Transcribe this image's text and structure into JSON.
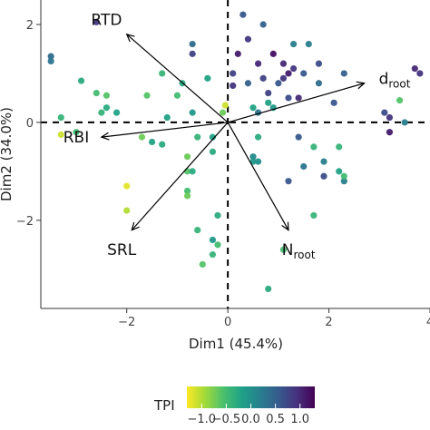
{
  "chart_data": {
    "type": "scatter",
    "title": "",
    "xlabel": "Dim1 (45.4%)",
    "ylabel": "Dim2 (34.0%)",
    "xlim": [
      -3.7,
      4.0
    ],
    "ylim": [
      -3.8,
      2.5
    ],
    "xticks": [
      {
        "value": -2,
        "label": "−2"
      },
      {
        "value": 0,
        "label": "0"
      },
      {
        "value": 2,
        "label": "2"
      },
      {
        "value": 4,
        "label": "4"
      }
    ],
    "yticks": [
      {
        "value": 2,
        "label": "2"
      },
      {
        "value": 0,
        "label": "0"
      },
      {
        "value": -2,
        "label": "−2"
      }
    ],
    "reference_lines": {
      "x": 0,
      "y": 0,
      "style": "dashed"
    },
    "grid": false,
    "legend": {
      "title": "TPI",
      "placement": "bottom",
      "min": -1.3,
      "max": 1.3,
      "ticks": [
        {
          "value": -1.0,
          "label": "−1.0"
        },
        {
          "value": -0.5,
          "label": "−0.5"
        },
        {
          "value": 0.0,
          "label": "0.0"
        },
        {
          "value": 0.5,
          "label": "0.5"
        },
        {
          "value": 1.0,
          "label": "1.0"
        }
      ],
      "colors": [
        "#fde725",
        "#a0da39",
        "#4ac16d",
        "#1fa187",
        "#277f8e",
        "#365c8d",
        "#46327e",
        "#440154"
      ]
    },
    "vectors": [
      {
        "name": "RTD",
        "sub": "",
        "x": -2.0,
        "y": 1.8,
        "label_x": -2.4,
        "label_y": 2.1
      },
      {
        "name": "RBI",
        "sub": "",
        "x": -2.5,
        "y": -0.3,
        "label_x": -3.0,
        "label_y": -0.3
      },
      {
        "name": "SRL",
        "sub": "",
        "x": -1.9,
        "y": -2.2,
        "label_x": -2.1,
        "label_y": -2.6
      },
      {
        "name": "N",
        "sub": "root",
        "x": 1.2,
        "y": -2.2,
        "label_x": 1.4,
        "label_y": -2.6
      },
      {
        "name": "d",
        "sub": "root",
        "x": 2.7,
        "y": 0.8,
        "label_x": 3.3,
        "label_y": 0.9
      }
    ],
    "points": [
      {
        "x": -3.5,
        "y": 1.35,
        "tpi": 0.4
      },
      {
        "x": -3.5,
        "y": 1.25,
        "tpi": 0.3
      },
      {
        "x": -3.3,
        "y": -0.25,
        "tpi": -1.1
      },
      {
        "x": -3.3,
        "y": 0.1,
        "tpi": -0.4
      },
      {
        "x": -3.0,
        "y": -0.2,
        "tpi": -0.5
      },
      {
        "x": -2.9,
        "y": 0.85,
        "tpi": -0.3
      },
      {
        "x": -2.6,
        "y": 2.05,
        "tpi": 0.9
      },
      {
        "x": -2.6,
        "y": 0.6,
        "tpi": -0.5
      },
      {
        "x": -2.5,
        "y": 0.2,
        "tpi": -0.4
      },
      {
        "x": -2.4,
        "y": 0.55,
        "tpi": -0.6
      },
      {
        "x": -2.4,
        "y": 0.3,
        "tpi": -0.3
      },
      {
        "x": -2.2,
        "y": 0.2,
        "tpi": -0.2
      },
      {
        "x": -2.0,
        "y": -1.3,
        "tpi": -1.2
      },
      {
        "x": -2.0,
        "y": -1.8,
        "tpi": -1.0
      },
      {
        "x": -1.7,
        "y": -0.3,
        "tpi": -0.7
      },
      {
        "x": -1.6,
        "y": 0.55,
        "tpi": -0.6
      },
      {
        "x": -1.5,
        "y": -0.4,
        "tpi": -0.2
      },
      {
        "x": -1.3,
        "y": -0.45,
        "tpi": -0.3
      },
      {
        "x": -1.3,
        "y": 1.0,
        "tpi": -0.4
      },
      {
        "x": -1.2,
        "y": 0.1,
        "tpi": -0.2
      },
      {
        "x": -1.0,
        "y": 0.55,
        "tpi": -0.5
      },
      {
        "x": -0.9,
        "y": 0.8,
        "tpi": -0.3
      },
      {
        "x": -0.8,
        "y": -0.7,
        "tpi": -0.7
      },
      {
        "x": -0.8,
        "y": -1.4,
        "tpi": -0.5
      },
      {
        "x": -0.7,
        "y": 1.4,
        "tpi": 0.8
      },
      {
        "x": -0.7,
        "y": 1.6,
        "tpi": 0.4
      },
      {
        "x": -0.8,
        "y": -1.0,
        "tpi": -0.6
      },
      {
        "x": -0.8,
        "y": -1.5,
        "tpi": -0.7
      },
      {
        "x": -0.7,
        "y": -1.0,
        "tpi": -0.3
      },
      {
        "x": -0.7,
        "y": 0.2,
        "tpi": -0.1
      },
      {
        "x": -0.6,
        "y": -0.3,
        "tpi": -0.4
      },
      {
        "x": -0.6,
        "y": -2.2,
        "tpi": -0.4
      },
      {
        "x": -0.5,
        "y": -2.9,
        "tpi": -0.6
      },
      {
        "x": -0.4,
        "y": 0.9,
        "tpi": -0.2
      },
      {
        "x": -0.3,
        "y": -0.3,
        "tpi": -0.2
      },
      {
        "x": -0.3,
        "y": -0.6,
        "tpi": -0.3
      },
      {
        "x": -0.3,
        "y": -2.7,
        "tpi": -0.4
      },
      {
        "x": -0.3,
        "y": -2.4,
        "tpi": -0.1
      },
      {
        "x": -0.2,
        "y": -1.9,
        "tpi": -0.3
      },
      {
        "x": -0.2,
        "y": -2.5,
        "tpi": -0.5
      },
      {
        "x": -0.1,
        "y": 0.2,
        "tpi": -0.7
      },
      {
        "x": -0.05,
        "y": 0.35,
        "tpi": -1.1
      },
      {
        "x": 0.1,
        "y": 0.75,
        "tpi": 0.9
      },
      {
        "x": 0.1,
        "y": 1.0,
        "tpi": 0.8
      },
      {
        "x": 0.2,
        "y": 1.4,
        "tpi": 1.1
      },
      {
        "x": 0.3,
        "y": 2.2,
        "tpi": 0.6
      },
      {
        "x": 0.4,
        "y": 1.7,
        "tpi": 0.9
      },
      {
        "x": 0.4,
        "y": 0.8,
        "tpi": 0.5
      },
      {
        "x": 0.5,
        "y": 0.3,
        "tpi": -0.2
      },
      {
        "x": 0.5,
        "y": -0.7,
        "tpi": 0.1
      },
      {
        "x": 0.5,
        "y": -0.8,
        "tpi": -0.1
      },
      {
        "x": 0.6,
        "y": 1.2,
        "tpi": 1.0
      },
      {
        "x": 0.6,
        "y": -0.3,
        "tpi": -0.3
      },
      {
        "x": 0.6,
        "y": 0.2,
        "tpi": 0.3
      },
      {
        "x": 0.6,
        "y": -0.8,
        "tpi": 0.0
      },
      {
        "x": 0.7,
        "y": 2.0,
        "tpi": 0.5
      },
      {
        "x": 0.7,
        "y": 0.9,
        "tpi": 0.8
      },
      {
        "x": 0.8,
        "y": 0.6,
        "tpi": 0.8
      },
      {
        "x": 0.8,
        "y": 0.4,
        "tpi": -0.2
      },
      {
        "x": 0.9,
        "y": 1.4,
        "tpi": 1.2
      },
      {
        "x": 0.9,
        "y": 0.3,
        "tpi": -0.1
      },
      {
        "x": 0.8,
        "y": -3.4,
        "tpi": -0.3
      },
      {
        "x": 1.0,
        "y": 0.8,
        "tpi": 0.6
      },
      {
        "x": 1.1,
        "y": 1.2,
        "tpi": 1.0
      },
      {
        "x": 1.1,
        "y": -2.6,
        "tpi": -0.5
      },
      {
        "x": 1.1,
        "y": 0.9,
        "tpi": 0.9
      },
      {
        "x": 1.2,
        "y": 1.0,
        "tpi": 1.1
      },
      {
        "x": 1.2,
        "y": 0.5,
        "tpi": 0.7
      },
      {
        "x": 1.2,
        "y": -1.2,
        "tpi": 0.6
      },
      {
        "x": 1.3,
        "y": 1.1,
        "tpi": 0.9
      },
      {
        "x": 1.3,
        "y": 1.6,
        "tpi": 0.2
      },
      {
        "x": 1.4,
        "y": 0.5,
        "tpi": 1.0
      },
      {
        "x": 1.4,
        "y": -0.3,
        "tpi": 0.6
      },
      {
        "x": 1.5,
        "y": 1.0,
        "tpi": 0.6
      },
      {
        "x": 1.5,
        "y": -0.9,
        "tpi": 0.3
      },
      {
        "x": 1.6,
        "y": 1.6,
        "tpi": 0.2
      },
      {
        "x": 1.7,
        "y": -0.5,
        "tpi": -0.4
      },
      {
        "x": 1.7,
        "y": -1.9,
        "tpi": -0.4
      },
      {
        "x": 1.8,
        "y": 0.8,
        "tpi": 0.4
      },
      {
        "x": 1.8,
        "y": 1.2,
        "tpi": 0.7
      },
      {
        "x": 1.9,
        "y": -1.1,
        "tpi": 0.7
      },
      {
        "x": 1.9,
        "y": -0.8,
        "tpi": 0.2
      },
      {
        "x": 2.1,
        "y": 0.4,
        "tpi": 0.6
      },
      {
        "x": 2.2,
        "y": -0.5,
        "tpi": -0.4
      },
      {
        "x": 2.2,
        "y": -1.0,
        "tpi": -0.2
      },
      {
        "x": 2.3,
        "y": -1.2,
        "tpi": 0.2
      },
      {
        "x": 2.3,
        "y": 1.0,
        "tpi": 0.5
      },
      {
        "x": 2.3,
        "y": -1.1,
        "tpi": -0.5
      },
      {
        "x": 3.1,
        "y": 0.2,
        "tpi": 0.7
      },
      {
        "x": 3.2,
        "y": 0.1,
        "tpi": 0.9
      },
      {
        "x": 3.2,
        "y": -0.2,
        "tpi": 1.1
      },
      {
        "x": 3.4,
        "y": 0.45,
        "tpi": -0.6
      },
      {
        "x": 3.5,
        "y": 0.0,
        "tpi": 0.2
      },
      {
        "x": 3.7,
        "y": 1.1,
        "tpi": 1.0
      },
      {
        "x": 3.8,
        "y": 1.0,
        "tpi": 0.9
      }
    ]
  }
}
